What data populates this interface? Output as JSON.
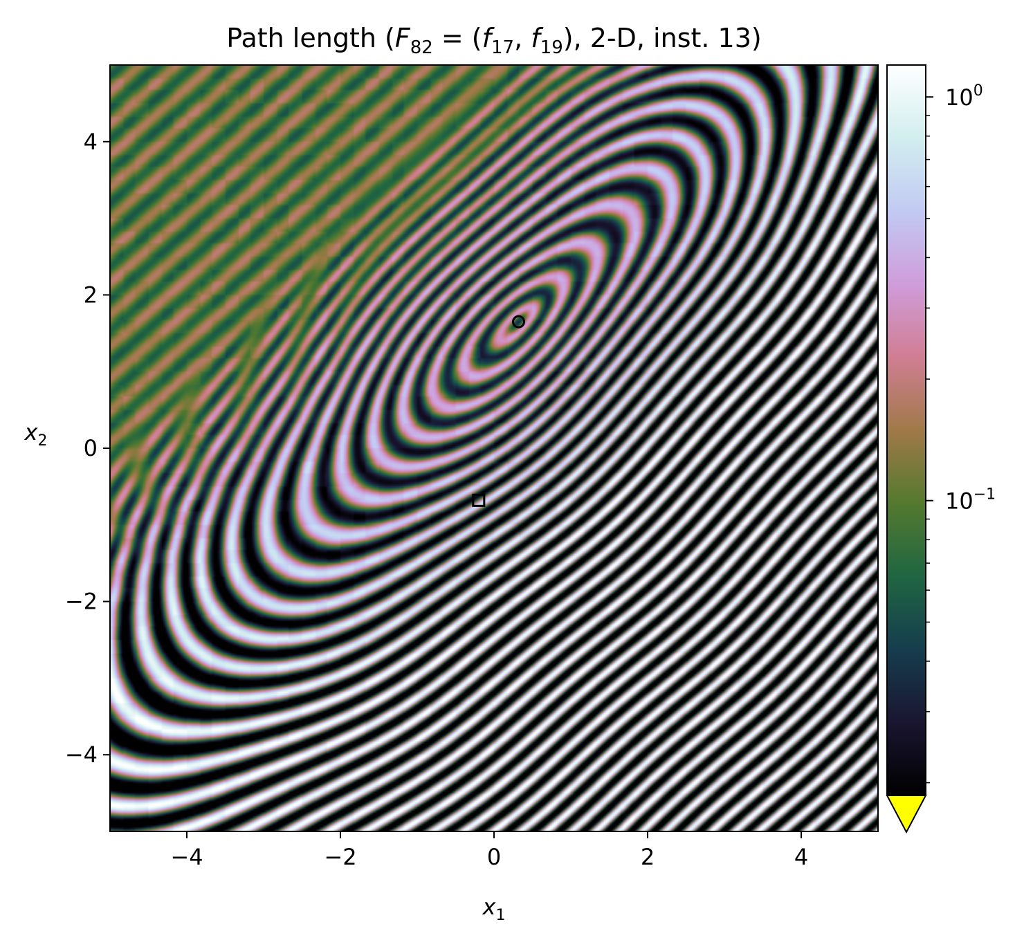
{
  "chart_data": {
    "type": "heatmap",
    "title": {
      "prefix": "Path length (",
      "F": "F",
      "F_sub": "82",
      "eq": " = (",
      "f1": "f",
      "f1_sub": "17",
      "comma": ", ",
      "f2": "f",
      "f2_sub": "19",
      "suffix": "), 2-D, inst. 13)"
    },
    "xlabel": {
      "base": "x",
      "sub": "1"
    },
    "ylabel": {
      "base": "x",
      "sub": "2"
    },
    "xlim": [
      -5,
      5
    ],
    "ylim": [
      -5,
      5
    ],
    "x_ticks": [
      {
        "value": -4,
        "label": "−4"
      },
      {
        "value": -2,
        "label": "−2"
      },
      {
        "value": 0,
        "label": "0"
      },
      {
        "value": 2,
        "label": "2"
      },
      {
        "value": 4,
        "label": "4"
      }
    ],
    "y_ticks": [
      {
        "value": 4,
        "label": "4"
      },
      {
        "value": 2,
        "label": "2"
      },
      {
        "value": 0,
        "label": "0"
      },
      {
        "value": -2,
        "label": "−2"
      },
      {
        "value": -4,
        "label": "−4"
      }
    ],
    "colorbar": {
      "scale": "log",
      "range": [
        0.0186,
        1.2
      ],
      "ticks": [
        {
          "value": 1,
          "base": "10",
          "exp": "0"
        },
        {
          "value": 0.1,
          "base": "10",
          "exp": "−1"
        }
      ],
      "minor_ticks": [
        0.02,
        0.03,
        0.04,
        0.05,
        0.06,
        0.07,
        0.08,
        0.09,
        0.2,
        0.3,
        0.4,
        0.5,
        0.6,
        0.7,
        0.8,
        0.9
      ],
      "extend": "min",
      "under_color": "#ffff00",
      "colormap": "cubehelix",
      "colormap_stops": [
        "#000000",
        "#1a1530",
        "#163d4e",
        "#1f6642",
        "#54792f",
        "#a07949",
        "#d07e93",
        "#cf9cda",
        "#c1caf3",
        "#d2eeef",
        "#ffffff"
      ]
    },
    "markers": [
      {
        "shape": "circle",
        "x": 0.32,
        "y": 1.65,
        "color": "#000000"
      },
      {
        "shape": "square",
        "x": -0.2,
        "y": -0.68,
        "color": "#000000"
      }
    ],
    "field": {
      "description_free": true,
      "center_x": 0.32,
      "center_y": 1.65
    }
  }
}
